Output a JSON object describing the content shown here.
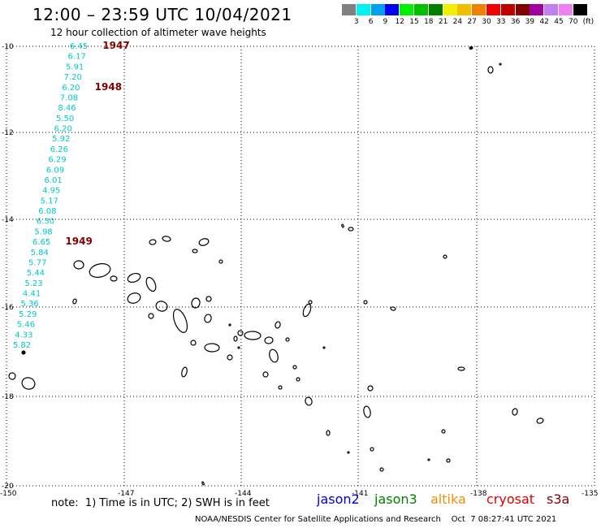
{
  "title": "12:00 – 23:59 UTC 10/04/2021",
  "subtitle": "12 hour collection of altimeter wave heights",
  "colorbar": {
    "colors": [
      "#808080",
      "#00f0f0",
      "#00a0f0",
      "#0000f0",
      "#00f000",
      "#00c000",
      "#008000",
      "#f0f000",
      "#f0c000",
      "#f08000",
      "#f00000",
      "#c00000",
      "#800000",
      "#a000a0",
      "#c080f0",
      "#f080f0",
      "#000000"
    ],
    "labels": [
      "3",
      "6",
      "9",
      "12",
      "15",
      "18",
      "21",
      "24",
      "27",
      "30",
      "33",
      "36",
      "39",
      "42",
      "45",
      "70"
    ],
    "unit": "(ft)"
  },
  "map": {
    "lat_labels": [
      "-10",
      "-12",
      "-14",
      "-16",
      "-18",
      "-20"
    ],
    "lon_labels": [
      "-150",
      "-147",
      "-144",
      "-141",
      "-138",
      "-135"
    ]
  },
  "track": {
    "color": "#00c8c8",
    "values": [
      "6.45",
      "6.17",
      "5.91",
      "7.20",
      "6.20",
      "7.08",
      "8.46",
      "5.50",
      "6.20",
      "5.92",
      "6.26",
      "6.29",
      "6.09",
      "6.01",
      "4.95",
      "5.17",
      "6.08",
      "6.30",
      "5.98",
      "6.65",
      "5.84",
      "5.77",
      "5.44",
      "5.23",
      "4.41",
      "5.36",
      "5.29",
      "5.46",
      "4.33",
      "5.82"
    ],
    "hour_labels": [
      {
        "text": "1947",
        "after_index": 0
      },
      {
        "text": "1948",
        "after_index": 4
      },
      {
        "text": "1949",
        "after_index": 19
      }
    ],
    "hour_color": "#800000"
  },
  "note": "note:  1) Time is in UTC; 2) SWH is in feet",
  "satellites": [
    {
      "name": "jason2",
      "color": "#0000d0"
    },
    {
      "name": "jason3",
      "color": "#008000"
    },
    {
      "name": "altika",
      "color": "#f09000"
    },
    {
      "name": "cryosat",
      "color": "#e00000"
    },
    {
      "name": "s3a",
      "color": "#800000"
    }
  ],
  "footer": "NOAA/NESDIS Center for Satellite Applications and Research    Oct  7 08:27:41 UTC 2021"
}
